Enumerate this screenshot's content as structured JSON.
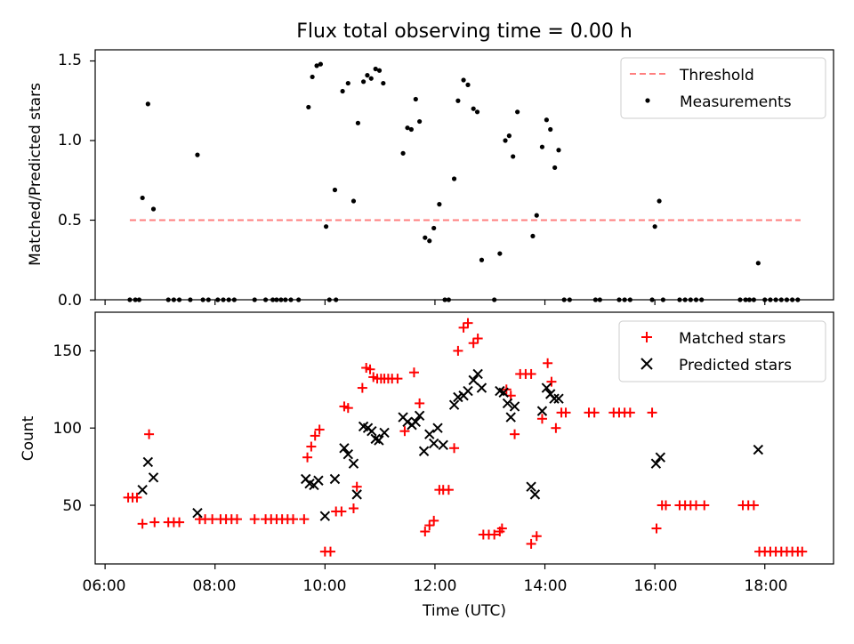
{
  "figure": {
    "title": "Flux total observing time = 0.00 h"
  },
  "chart_data": [
    {
      "type": "scatter",
      "ylabel": "Matched/Predicted stars",
      "xlim": [
        5.82,
        19.25
      ],
      "ylim": [
        0.0,
        1.57
      ],
      "yticks": [
        "0.0",
        "0.5",
        "1.0",
        "1.5"
      ],
      "grid": false,
      "legend_position": "top-right",
      "legend": [
        "Threshold",
        "Measurements"
      ],
      "threshold": {
        "name": "Threshold",
        "value": 0.5,
        "x": [
          6.45,
          18.65
        ],
        "color": "#ff7f7f",
        "style": "dashed"
      },
      "series": [
        {
          "name": "Measurements",
          "color": "#000000",
          "marker": "dot",
          "points": [
            [
              6.45,
              0
            ],
            [
              6.55,
              0
            ],
            [
              6.62,
              0
            ],
            [
              6.68,
              0.64
            ],
            [
              6.78,
              1.23
            ],
            [
              6.88,
              0.57
            ],
            [
              7.15,
              0
            ],
            [
              7.25,
              0
            ],
            [
              7.35,
              0
            ],
            [
              7.55,
              0
            ],
            [
              7.68,
              0.91
            ],
            [
              7.78,
              0
            ],
            [
              7.88,
              0
            ],
            [
              8.05,
              0
            ],
            [
              8.15,
              0
            ],
            [
              8.25,
              0
            ],
            [
              8.35,
              0
            ],
            [
              8.72,
              0
            ],
            [
              8.92,
              0
            ],
            [
              9.05,
              0
            ],
            [
              9.12,
              0
            ],
            [
              9.2,
              0
            ],
            [
              9.28,
              0
            ],
            [
              9.38,
              0
            ],
            [
              9.52,
              0
            ],
            [
              9.7,
              1.21
            ],
            [
              9.77,
              1.4
            ],
            [
              9.85,
              1.47
            ],
            [
              9.92,
              1.48
            ],
            [
              10.02,
              0.46
            ],
            [
              10.08,
              0
            ],
            [
              10.18,
              0.69
            ],
            [
              10.2,
              0
            ],
            [
              10.32,
              1.31
            ],
            [
              10.42,
              1.36
            ],
            [
              10.52,
              0.62
            ],
            [
              10.6,
              1.11
            ],
            [
              10.7,
              1.37
            ],
            [
              10.77,
              1.41
            ],
            [
              10.84,
              1.39
            ],
            [
              10.92,
              1.45
            ],
            [
              10.99,
              1.44
            ],
            [
              11.06,
              1.36
            ],
            [
              11.42,
              0.92
            ],
            [
              11.5,
              1.08
            ],
            [
              11.57,
              1.07
            ],
            [
              11.65,
              1.26
            ],
            [
              11.72,
              1.12
            ],
            [
              11.82,
              0.39
            ],
            [
              11.9,
              0.37
            ],
            [
              11.98,
              0.45
            ],
            [
              12.08,
              0.6
            ],
            [
              12.18,
              0
            ],
            [
              12.25,
              0
            ],
            [
              12.35,
              0.76
            ],
            [
              12.42,
              1.25
            ],
            [
              12.52,
              1.38
            ],
            [
              12.6,
              1.35
            ],
            [
              12.7,
              1.2
            ],
            [
              12.77,
              1.18
            ],
            [
              12.85,
              0.25
            ],
            [
              13.08,
              0
            ],
            [
              13.18,
              0.29
            ],
            [
              13.28,
              1.0
            ],
            [
              13.35,
              1.03
            ],
            [
              13.42,
              0.9
            ],
            [
              13.5,
              1.18
            ],
            [
              13.78,
              0.4
            ],
            [
              13.85,
              0.53
            ],
            [
              13.95,
              0.96
            ],
            [
              14.03,
              1.13
            ],
            [
              14.1,
              1.07
            ],
            [
              14.18,
              0.83
            ],
            [
              14.25,
              0.94
            ],
            [
              14.35,
              0
            ],
            [
              14.45,
              0
            ],
            [
              14.92,
              0
            ],
            [
              15.0,
              0
            ],
            [
              15.35,
              0
            ],
            [
              15.45,
              0
            ],
            [
              15.55,
              0
            ],
            [
              15.95,
              0
            ],
            [
              16.0,
              0.46
            ],
            [
              16.08,
              0.62
            ],
            [
              16.15,
              0
            ],
            [
              16.45,
              0
            ],
            [
              16.55,
              0
            ],
            [
              16.65,
              0
            ],
            [
              16.75,
              0
            ],
            [
              16.85,
              0
            ],
            [
              17.55,
              0
            ],
            [
              17.65,
              0
            ],
            [
              17.72,
              0
            ],
            [
              17.8,
              0
            ],
            [
              17.88,
              0.23
            ],
            [
              18.0,
              0
            ],
            [
              18.1,
              0
            ],
            [
              18.2,
              0
            ],
            [
              18.3,
              0
            ],
            [
              18.4,
              0
            ],
            [
              18.5,
              0
            ],
            [
              18.6,
              0
            ]
          ]
        }
      ]
    },
    {
      "type": "scatter",
      "xlabel": "Time (UTC)",
      "ylabel": "Count",
      "xlim": [
        5.82,
        19.25
      ],
      "ylim": [
        12,
        175
      ],
      "xticks": [
        "06:00",
        "08:00",
        "10:00",
        "12:00",
        "14:00",
        "16:00",
        "18:00"
      ],
      "yticks": [
        "50",
        "100",
        "150"
      ],
      "grid": false,
      "legend_position": "top-right",
      "legend": [
        "Matched stars",
        "Predicted stars"
      ],
      "series": [
        {
          "name": "Matched stars",
          "color": "#ff0000",
          "marker": "plus",
          "points": [
            [
              6.42,
              55
            ],
            [
              6.5,
              55
            ],
            [
              6.58,
              55
            ],
            [
              6.68,
              38
            ],
            [
              6.8,
              96
            ],
            [
              6.9,
              39
            ],
            [
              7.15,
              39
            ],
            [
              7.25,
              39
            ],
            [
              7.35,
              39
            ],
            [
              7.72,
              41
            ],
            [
              7.82,
              41
            ],
            [
              7.95,
              41
            ],
            [
              8.1,
              41
            ],
            [
              8.2,
              41
            ],
            [
              8.3,
              41
            ],
            [
              8.4,
              41
            ],
            [
              8.72,
              41
            ],
            [
              8.92,
              41
            ],
            [
              9.02,
              41
            ],
            [
              9.12,
              41
            ],
            [
              9.22,
              41
            ],
            [
              9.32,
              41
            ],
            [
              9.42,
              41
            ],
            [
              9.62,
              41
            ],
            [
              9.68,
              81
            ],
            [
              9.75,
              88
            ],
            [
              9.82,
              95
            ],
            [
              9.9,
              99
            ],
            [
              10.0,
              20
            ],
            [
              10.1,
              20
            ],
            [
              10.2,
              46
            ],
            [
              10.3,
              46
            ],
            [
              10.35,
              114
            ],
            [
              10.42,
              113
            ],
            [
              10.52,
              48
            ],
            [
              10.58,
              62
            ],
            [
              10.68,
              126
            ],
            [
              10.75,
              139
            ],
            [
              10.82,
              138
            ],
            [
              10.88,
              133
            ],
            [
              10.95,
              132
            ],
            [
              11.02,
              132
            ],
            [
              11.08,
              132
            ],
            [
              11.15,
              132
            ],
            [
              11.22,
              132
            ],
            [
              11.32,
              132
            ],
            [
              11.45,
              98
            ],
            [
              11.62,
              136
            ],
            [
              11.72,
              116
            ],
            [
              11.82,
              33
            ],
            [
              11.9,
              37
            ],
            [
              11.98,
              40
            ],
            [
              12.08,
              60
            ],
            [
              12.15,
              60
            ],
            [
              12.25,
              60
            ],
            [
              12.35,
              87
            ],
            [
              12.42,
              150
            ],
            [
              12.52,
              165
            ],
            [
              12.6,
              168
            ],
            [
              12.7,
              155
            ],
            [
              12.78,
              158
            ],
            [
              12.88,
              31
            ],
            [
              12.98,
              31
            ],
            [
              13.08,
              31
            ],
            [
              13.18,
              33
            ],
            [
              13.22,
              35
            ],
            [
              13.3,
              125
            ],
            [
              13.38,
              121
            ],
            [
              13.45,
              96
            ],
            [
              13.55,
              135
            ],
            [
              13.65,
              135
            ],
            [
              13.75,
              135
            ],
            [
              13.75,
              25
            ],
            [
              13.85,
              30
            ],
            [
              13.95,
              106
            ],
            [
              14.05,
              142
            ],
            [
              14.12,
              130
            ],
            [
              14.2,
              100
            ],
            [
              14.3,
              110
            ],
            [
              14.38,
              110
            ],
            [
              14.8,
              110
            ],
            [
              14.9,
              110
            ],
            [
              15.25,
              110
            ],
            [
              15.35,
              110
            ],
            [
              15.45,
              110
            ],
            [
              15.55,
              110
            ],
            [
              15.95,
              110
            ],
            [
              16.03,
              35
            ],
            [
              16.13,
              50
            ],
            [
              16.2,
              50
            ],
            [
              16.45,
              50
            ],
            [
              16.55,
              50
            ],
            [
              16.65,
              50
            ],
            [
              16.75,
              50
            ],
            [
              16.9,
              50
            ],
            [
              17.6,
              50
            ],
            [
              17.7,
              50
            ],
            [
              17.8,
              50
            ],
            [
              17.9,
              20
            ],
            [
              18.0,
              20
            ],
            [
              18.1,
              20
            ],
            [
              18.2,
              20
            ],
            [
              18.3,
              20
            ],
            [
              18.4,
              20
            ],
            [
              18.5,
              20
            ],
            [
              18.6,
              20
            ],
            [
              18.68,
              20
            ]
          ]
        },
        {
          "name": "Predicted stars",
          "color": "#000000",
          "marker": "x",
          "points": [
            [
              6.68,
              60
            ],
            [
              6.78,
              78
            ],
            [
              6.88,
              68
            ],
            [
              7.68,
              45
            ],
            [
              9.65,
              67
            ],
            [
              9.72,
              64
            ],
            [
              9.8,
              63
            ],
            [
              9.88,
              66
            ],
            [
              10.0,
              43
            ],
            [
              10.18,
              67
            ],
            [
              10.35,
              87
            ],
            [
              10.42,
              83
            ],
            [
              10.52,
              77
            ],
            [
              10.58,
              57
            ],
            [
              10.7,
              101
            ],
            [
              10.78,
              100
            ],
            [
              10.85,
              98
            ],
            [
              10.92,
              93
            ],
            [
              10.98,
              92
            ],
            [
              11.08,
              97
            ],
            [
              11.42,
              107
            ],
            [
              11.5,
              104
            ],
            [
              11.58,
              102
            ],
            [
              11.65,
              104
            ],
            [
              11.72,
              108
            ],
            [
              11.8,
              85
            ],
            [
              11.9,
              96
            ],
            [
              11.98,
              90
            ],
            [
              12.05,
              100
            ],
            [
              12.15,
              89
            ],
            [
              12.35,
              115
            ],
            [
              12.42,
              120
            ],
            [
              12.52,
              121
            ],
            [
              12.6,
              124
            ],
            [
              12.7,
              131
            ],
            [
              12.78,
              135
            ],
            [
              12.85,
              126
            ],
            [
              13.18,
              124
            ],
            [
              13.25,
              123
            ],
            [
              13.32,
              116
            ],
            [
              13.38,
              107
            ],
            [
              13.45,
              114
            ],
            [
              13.75,
              62
            ],
            [
              13.82,
              57
            ],
            [
              13.95,
              111
            ],
            [
              14.03,
              126
            ],
            [
              14.1,
              122
            ],
            [
              14.17,
              119
            ],
            [
              14.25,
              119
            ],
            [
              16.02,
              77
            ],
            [
              16.1,
              81
            ],
            [
              17.88,
              86
            ]
          ]
        }
      ]
    }
  ]
}
